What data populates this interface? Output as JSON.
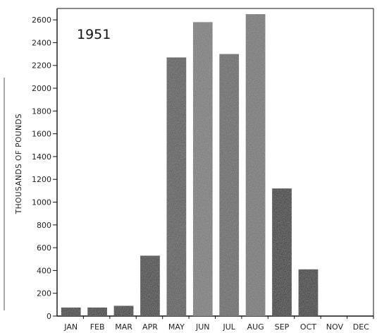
{
  "chart_data": {
    "type": "bar",
    "title": "1951",
    "ylabel": "THOUSANDS OF POUNDS",
    "xlabel": "",
    "categories": [
      "JAN",
      "FEB",
      "MAR",
      "APR",
      "MAY",
      "JUN",
      "JUL",
      "AUG",
      "SEP",
      "OCT",
      "NOV",
      "DEC"
    ],
    "values": [
      75,
      75,
      90,
      530,
      2270,
      2580,
      2300,
      2650,
      1120,
      410,
      0,
      0
    ],
    "ylim": [
      0,
      2700
    ],
    "yticks": [
      0,
      200,
      400,
      600,
      800,
      1000,
      1200,
      1400,
      1600,
      1800,
      2000,
      2200,
      2400,
      2600
    ],
    "grid": false,
    "legend": "none",
    "bar_colors": [
      "#1e1e1e",
      "#1e1e1e",
      "#1e1e1e",
      "#2a2a2a",
      "#4a4a4a",
      "#707070",
      "#5a5a5a",
      "#6a6a6a",
      "#151515",
      "#151515",
      "#151515",
      "#151515"
    ]
  }
}
